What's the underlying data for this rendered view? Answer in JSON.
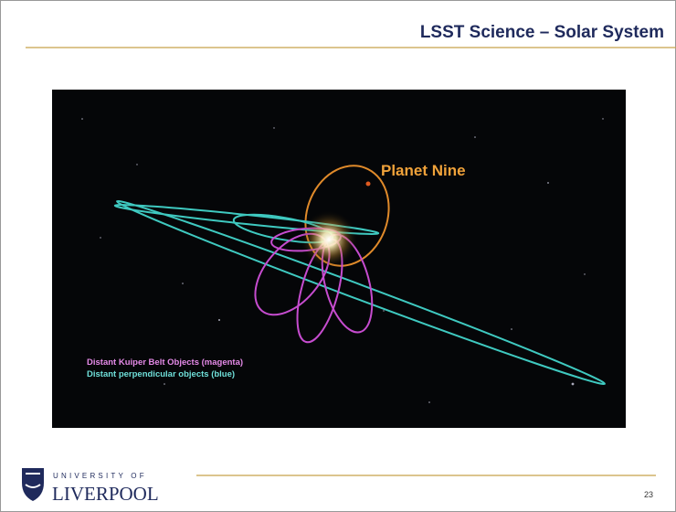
{
  "header": {
    "title": "LSST Science – Solar System"
  },
  "figure": {
    "labels": [
      "Planet Nine",
      "Distant Kuiper Belt Objects (magenta)",
      "Distant perpendicular objects (blue)"
    ]
  },
  "footer": {
    "logo": {
      "line1": "UNIVERSITY OF",
      "line2": "LIVERPOOL"
    },
    "page_number": "23"
  }
}
